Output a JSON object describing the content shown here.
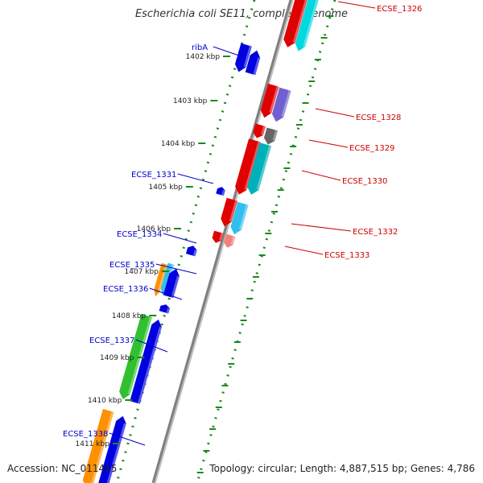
{
  "title": "Escherichia coli SE11, complete genome",
  "footer": {
    "accession": "Accession: NC_011415",
    "summary": "Topology: circular; Length: 4,887,515 bp; Genes: 4,786"
  },
  "colors": {
    "backbone": "#808080",
    "ticks": "#1a8a1a",
    "left_labels": "#0000cc",
    "right_labels": "#cc0000"
  },
  "ticks": [
    "1402 kbp",
    "1403 kbp",
    "1404 kbp",
    "1405 kbp",
    "1406 kbp",
    "1407 kbp",
    "1408 kbp",
    "1409 kbp",
    "1410 kbp",
    "1411 kbp"
  ],
  "left_labels": [
    "ribA",
    "ECSE_1331",
    "ECSE_1334",
    "ECSE_1335",
    "ECSE_1336",
    "ECSE_1337",
    "ECSE_1338"
  ],
  "right_labels": [
    "ECSE_1326",
    "ECSE_1328",
    "ECSE_1329",
    "ECSE_1330",
    "ECSE_1332",
    "ECSE_1333"
  ]
}
